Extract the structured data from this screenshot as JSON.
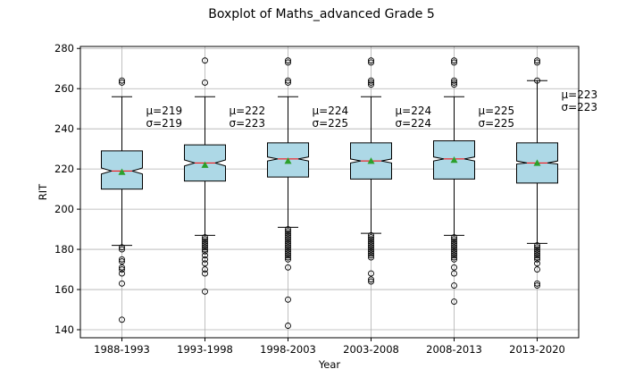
{
  "chart_data": {
    "type": "boxplot",
    "title": "Boxplot of Maths_advanced Grade 5",
    "xlabel": "Year",
    "ylabel": "RIT",
    "ylim": [
      136,
      281
    ],
    "yticks": [
      140,
      160,
      180,
      200,
      220,
      240,
      260,
      280
    ],
    "grid": true,
    "notched": true,
    "show_means": true,
    "colors": {
      "box_fill": "#add8e6",
      "median": "#ff0000",
      "mean_marker": "#2ca02c",
      "outline": "#000000",
      "grid": "#b0b0b0"
    },
    "categories": [
      "1988-1993",
      "1993-1998",
      "1998-2003",
      "2003-2008",
      "2008-2013",
      "2013-2020"
    ],
    "boxes": [
      {
        "category": "1988-1993",
        "whislo": 182,
        "q1": 210,
        "med": 219,
        "q3": 229,
        "whishi": 256,
        "mean": 218.5,
        "notch_lo": 217.5,
        "notch_hi": 220.5,
        "fliers": [
          145,
          163,
          168,
          170,
          171,
          174,
          175,
          180,
          181,
          263,
          264
        ],
        "mu_label": "μ=219",
        "sigma_label": "σ=219"
      },
      {
        "category": "1993-1998",
        "whislo": 187,
        "q1": 214,
        "med": 223,
        "q3": 232,
        "whishi": 256,
        "mean": 222,
        "notch_lo": 221.5,
        "notch_hi": 224.5,
        "fliers": [
          159,
          168,
          170,
          173,
          175,
          177,
          179,
          180,
          181,
          182,
          183,
          184,
          185,
          186,
          263,
          274
        ],
        "mu_label": "μ=222",
        "sigma_label": "σ=223"
      },
      {
        "category": "1998-2003",
        "whislo": 191,
        "q1": 216,
        "med": 225,
        "q3": 233,
        "whishi": 256,
        "mean": 224,
        "notch_lo": 224,
        "notch_hi": 226,
        "fliers": [
          142,
          155,
          171,
          175,
          176,
          177,
          178,
          179,
          180,
          181,
          182,
          183,
          184,
          185,
          186,
          187,
          188,
          189,
          190,
          263,
          264,
          273,
          274
        ],
        "mu_label": "μ=224",
        "sigma_label": "σ=225"
      },
      {
        "category": "2003-2008",
        "whislo": 188,
        "q1": 215,
        "med": 224,
        "q3": 233,
        "whishi": 256,
        "mean": 224,
        "notch_lo": 223,
        "notch_hi": 225,
        "fliers": [
          164,
          165,
          168,
          176,
          177,
          178,
          179,
          180,
          181,
          182,
          183,
          184,
          185,
          186,
          187,
          262,
          263,
          264,
          273,
          274
        ],
        "mu_label": "μ=224",
        "sigma_label": "σ=224"
      },
      {
        "category": "2008-2013",
        "whislo": 187,
        "q1": 215,
        "med": 225,
        "q3": 234,
        "whishi": 256,
        "mean": 224.5,
        "notch_lo": 224,
        "notch_hi": 226,
        "fliers": [
          154,
          162,
          168,
          171,
          175,
          176,
          177,
          178,
          179,
          180,
          181,
          182,
          183,
          184,
          185,
          186,
          262,
          263,
          264,
          273,
          274
        ],
        "mu_label": "μ=225",
        "sigma_label": "σ=225"
      },
      {
        "category": "2013-2020",
        "whislo": 183,
        "q1": 213,
        "med": 223,
        "q3": 233,
        "whishi": 264,
        "mean": 223,
        "notch_lo": 222.5,
        "notch_hi": 224,
        "fliers": [
          162,
          163,
          170,
          173,
          175,
          176,
          177,
          178,
          179,
          180,
          181,
          182,
          264,
          273,
          274
        ],
        "mu_label": "μ=223",
        "sigma_label": "σ=223"
      }
    ]
  }
}
